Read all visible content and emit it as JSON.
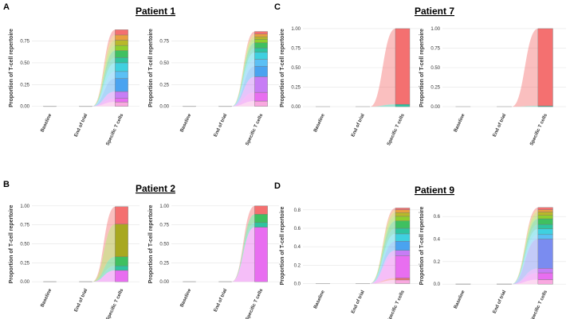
{
  "chart_data": [
    {
      "type": "alluvial",
      "panel_label": "A",
      "title": "Patient 1",
      "y_label": "Proportion of T-cell repertoire",
      "categories": [
        "Baseline",
        "End of trial",
        "Specific T cells"
      ],
      "ylim": [
        -0.04,
        0.92
      ],
      "yticks": [
        {
          "value": 0,
          "label": "0.00"
        },
        0.25,
        {
          "value": 0.5,
          "label": "0.50"
        },
        0.75
      ],
      "series": [
        {
          "color": "#f9a8e0",
          "values": [
            0,
            0,
            0.05
          ]
        },
        {
          "color": "#e86ef0",
          "values": [
            0,
            0,
            0.04
          ]
        },
        {
          "color": "#c77df5",
          "values": [
            0,
            0,
            0.08
          ]
        },
        {
          "color": "#4aa3f0",
          "values": [
            0,
            0,
            0.15
          ]
        },
        {
          "color": "#5bc0f5",
          "values": [
            0,
            0,
            0.08
          ]
        },
        {
          "color": "#3fd0e0",
          "values": [
            0,
            0,
            0.1
          ]
        },
        {
          "color": "#2ec4a0",
          "values": [
            0,
            0,
            0.06
          ]
        },
        {
          "color": "#3fc060",
          "values": [
            0,
            0,
            0.08
          ]
        },
        {
          "color": "#8fcf2e",
          "values": [
            0,
            0,
            0.06
          ]
        },
        {
          "color": "#b8b82a",
          "values": [
            0,
            0,
            0.06
          ]
        },
        {
          "color": "#e8a040",
          "values": [
            0,
            0,
            0.06
          ]
        },
        {
          "color": "#f47070",
          "values": [
            0,
            0,
            0.06
          ]
        }
      ]
    },
    {
      "type": "alluvial",
      "y_label": "Proportion of T-cell repertoire",
      "categories": [
        "Baseline",
        "End of trial",
        "Specific T cells"
      ],
      "ylim": [
        -0.04,
        0.92
      ],
      "yticks": [
        {
          "value": 0,
          "label": "0.00"
        },
        0.25,
        {
          "value": 0.5,
          "label": "0.50"
        },
        0.75
      ],
      "series": [
        {
          "color": "#f9a8e0",
          "values": [
            0,
            0,
            0.06
          ]
        },
        {
          "color": "#e86ef0",
          "values": [
            0,
            0,
            0.1
          ]
        },
        {
          "color": "#c77df5",
          "values": [
            0,
            0,
            0.18
          ]
        },
        {
          "color": "#4aa3f0",
          "values": [
            0,
            0,
            0.12
          ]
        },
        {
          "color": "#5bc0f5",
          "values": [
            0,
            0,
            0.08
          ]
        },
        {
          "color": "#3fd0e0",
          "values": [
            0,
            0,
            0.08
          ]
        },
        {
          "color": "#2ec4a0",
          "values": [
            0,
            0,
            0.05
          ]
        },
        {
          "color": "#3fc060",
          "values": [
            0,
            0,
            0.06
          ]
        },
        {
          "color": "#8fcf2e",
          "values": [
            0,
            0,
            0.04
          ]
        },
        {
          "color": "#b8b82a",
          "values": [
            0,
            0,
            0.03
          ]
        },
        {
          "color": "#e8a040",
          "values": [
            0,
            0,
            0.03
          ]
        },
        {
          "color": "#f47070",
          "values": [
            0,
            0,
            0.03
          ]
        }
      ]
    },
    {
      "type": "alluvial",
      "panel_label": "C",
      "title": "Patient 7",
      "y_label": "Proportion of T-cell repertoire",
      "categories": [
        "Baseline",
        "End of trial",
        "Specific T cells"
      ],
      "ylim": [
        -0.04,
        1.03
      ],
      "yticks": [
        {
          "value": 0,
          "label": "0.00"
        },
        0.25,
        {
          "value": 0.5,
          "label": "0.50"
        },
        0.75,
        {
          "value": 1,
          "label": "1.00"
        }
      ],
      "series": [
        {
          "color": "#2ec4a0",
          "values": [
            0,
            0,
            0.03
          ]
        },
        {
          "color": "#f47070",
          "values": [
            0,
            0,
            0.97
          ]
        }
      ]
    },
    {
      "type": "alluvial",
      "y_label": "Proportion of T-cell repertoire",
      "categories": [
        "Baseline",
        "End of trial",
        "Specific T cells"
      ],
      "ylim": [
        -0.04,
        1.03
      ],
      "yticks": [
        {
          "value": 0,
          "label": "0.00"
        },
        0.25,
        {
          "value": 0.5,
          "label": "0.50"
        },
        0.75,
        {
          "value": 1,
          "label": "1.00"
        }
      ],
      "series": [
        {
          "color": "#2ec4a0",
          "values": [
            0,
            0,
            0.01
          ]
        },
        {
          "color": "#f47070",
          "values": [
            0,
            0,
            0.99
          ]
        }
      ]
    },
    {
      "type": "alluvial",
      "panel_label": "B",
      "title": "Patient 2",
      "y_label": "Proportion of T-cell repertoire",
      "categories": [
        "Baseline",
        "End of trial",
        "Specific T cells"
      ],
      "ylim": [
        -0.04,
        1.03
      ],
      "yticks": [
        {
          "value": 0,
          "label": "0.00"
        },
        0.25,
        {
          "value": 0.5,
          "label": "0.50"
        },
        0.75,
        {
          "value": 1,
          "label": "1.00"
        }
      ],
      "series": [
        {
          "color": "#e86ef0",
          "values": [
            0,
            0,
            0.15
          ]
        },
        {
          "color": "#2ec4a0",
          "values": [
            0,
            0,
            0.06
          ]
        },
        {
          "color": "#3fc060",
          "values": [
            0,
            0,
            0.12
          ]
        },
        {
          "color": "#a8a820",
          "values": [
            0,
            0,
            0.43
          ]
        },
        {
          "color": "#f47070",
          "values": [
            0,
            0,
            0.23
          ]
        }
      ]
    },
    {
      "type": "alluvial",
      "y_label": "Proportion of T-cell repertoire",
      "categories": [
        "Baseline",
        "End of trial",
        "Specific T cells"
      ],
      "ylim": [
        -0.04,
        1.03
      ],
      "yticks": [
        {
          "value": 0,
          "label": "0.00"
        },
        0.25,
        {
          "value": 0.5,
          "label": "0.50"
        },
        0.75,
        {
          "value": 1,
          "label": "1.00"
        }
      ],
      "series": [
        {
          "color": "#e86ef0",
          "values": [
            0,
            0,
            0.72
          ]
        },
        {
          "color": "#2ec4a0",
          "values": [
            0,
            0,
            0.06
          ]
        },
        {
          "color": "#3fc060",
          "values": [
            0,
            0,
            0.11
          ]
        },
        {
          "color": "#f47070",
          "values": [
            0,
            0,
            0.11
          ]
        }
      ]
    },
    {
      "type": "alluvial",
      "panel_label": "D",
      "title": "Patient 9",
      "y_label": "Proportion of T-cell repertoire",
      "categories": [
        "Baseline",
        "End of trial",
        "Specific T cells"
      ],
      "ylim": [
        -0.03,
        0.85
      ],
      "yticks": [
        {
          "value": 0,
          "label": "0.0"
        },
        0.2,
        0.4,
        0.6,
        0.8
      ],
      "series": [
        {
          "color": "#f9a8e0",
          "values": [
            0,
            0,
            0.04
          ]
        },
        {
          "color": "#f47070",
          "values": [
            0,
            0,
            0.02
          ]
        },
        {
          "color": "#e86ef0",
          "values": [
            0,
            0,
            0.24
          ]
        },
        {
          "color": "#c77df5",
          "values": [
            0,
            0,
            0.06
          ]
        },
        {
          "color": "#4aa3f0",
          "values": [
            0,
            0,
            0.1
          ]
        },
        {
          "color": "#3fd0e0",
          "values": [
            0,
            0,
            0.08
          ]
        },
        {
          "color": "#2ec4a0",
          "values": [
            0,
            0,
            0.06
          ]
        },
        {
          "color": "#3fc060",
          "values": [
            0,
            0,
            0.08
          ]
        },
        {
          "color": "#8fcf2e",
          "values": [
            0,
            0,
            0.05
          ]
        },
        {
          "color": "#b8b82a",
          "values": [
            0,
            0,
            0.04
          ]
        },
        {
          "color": "#e8a040",
          "values": [
            0,
            0,
            0.03
          ]
        },
        {
          "color": "#f47070",
          "values": [
            0,
            0,
            0.02
          ]
        }
      ]
    },
    {
      "type": "alluvial",
      "y_label": "Proportion of T-cell repertoire",
      "categories": [
        "Baseline",
        "End of trial",
        "Specific T cells"
      ],
      "ylim": [
        -0.02,
        0.7
      ],
      "yticks": [
        {
          "value": 0,
          "label": "0.0"
        },
        0.2,
        0.4,
        0.6
      ],
      "series": [
        {
          "color": "#f9a8e0",
          "values": [
            0,
            0,
            0.04
          ]
        },
        {
          "color": "#e86ef0",
          "values": [
            0,
            0,
            0.06
          ]
        },
        {
          "color": "#c77df5",
          "values": [
            0,
            0,
            0.04
          ]
        },
        {
          "color": "#7a8cf0",
          "values": [
            0,
            0,
            0.26
          ]
        },
        {
          "color": "#5bc0f5",
          "values": [
            0,
            0,
            0.04
          ]
        },
        {
          "color": "#3fd0e0",
          "values": [
            0,
            0,
            0.05
          ]
        },
        {
          "color": "#2ec4a0",
          "values": [
            0,
            0,
            0.04
          ]
        },
        {
          "color": "#3fc060",
          "values": [
            0,
            0,
            0.05
          ]
        },
        {
          "color": "#8fcf2e",
          "values": [
            0,
            0,
            0.03
          ]
        },
        {
          "color": "#b8b82a",
          "values": [
            0,
            0,
            0.03
          ]
        },
        {
          "color": "#e8a040",
          "values": [
            0,
            0,
            0.02
          ]
        },
        {
          "color": "#f47070",
          "values": [
            0,
            0,
            0.02
          ]
        }
      ]
    }
  ]
}
